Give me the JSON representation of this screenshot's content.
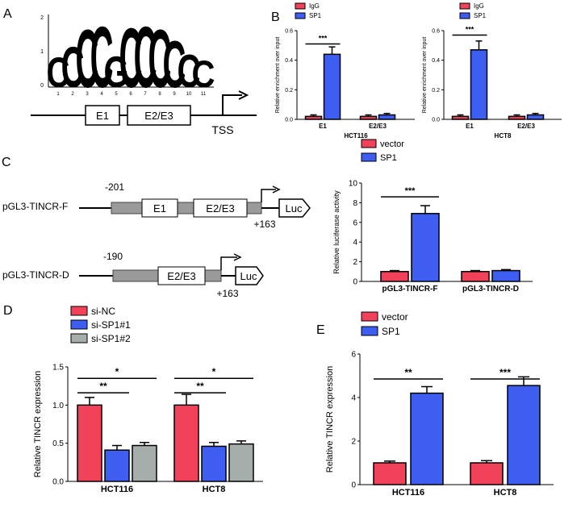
{
  "panel_labels": [
    "A",
    "B",
    "C",
    "D",
    "E"
  ],
  "colors": {
    "red": "#f2425a",
    "blue": "#3d5ef0",
    "grey": "#a6aeab"
  },
  "panel_a": {
    "logo_y_ticks": [
      "2",
      "1",
      "0"
    ],
    "logo_positions": [
      "1",
      "2",
      "3",
      "4",
      "5",
      "6",
      "7",
      "8",
      "9",
      "10",
      "11"
    ],
    "logo_letters": "CCCCGCCCCCC",
    "region_labels": [
      "E1",
      "E2/E3"
    ],
    "tss_label": "TSS"
  },
  "panel_c": {
    "constructs": [
      {
        "name": "pGL3-TINCR-F",
        "start": "-201",
        "end": "+163",
        "regions": [
          "E1",
          "E2/E3"
        ],
        "reporter": "Luc"
      },
      {
        "name": "pGL3-TINCR-D",
        "start": "-190",
        "end": "+163",
        "regions": [
          "E2/E3"
        ],
        "reporter": "Luc"
      }
    ]
  },
  "chart_data": [
    {
      "id": "B1",
      "type": "bar",
      "categories": [
        "E1",
        "E2/E3"
      ],
      "xlabel": "HCT116",
      "ylabel": "Relative enrichment over input",
      "ylim": [
        0,
        0.6
      ],
      "yticks": [
        "0.0",
        "0.2",
        "0.4",
        "0.6"
      ],
      "tick_values": [
        0,
        0.2,
        0.4,
        0.6
      ],
      "series": [
        {
          "name": "IgG",
          "color": "#f2425a",
          "values": [
            0.02,
            0.02
          ],
          "errors": [
            0.01,
            0.01
          ]
        },
        {
          "name": "SP1",
          "color": "#3d5ef0",
          "values": [
            0.44,
            0.03
          ],
          "errors": [
            0.05,
            0.01
          ]
        }
      ],
      "annotations": [
        {
          "label": "***",
          "from": 0,
          "to": 1,
          "at": 0.51
        }
      ],
      "legend": "top-left"
    },
    {
      "id": "B2",
      "type": "bar",
      "categories": [
        "E1",
        "E2/E3"
      ],
      "xlabel": "HCT8",
      "ylabel": "Relative enrichment over input",
      "ylim": [
        0,
        0.6
      ],
      "yticks": [
        "0.0",
        "0.2",
        "0.4",
        "0.6"
      ],
      "tick_values": [
        0,
        0.2,
        0.4,
        0.6
      ],
      "series": [
        {
          "name": "IgG",
          "color": "#f2425a",
          "values": [
            0.02,
            0.02
          ],
          "errors": [
            0.01,
            0.01
          ]
        },
        {
          "name": "SP1",
          "color": "#3d5ef0",
          "values": [
            0.47,
            0.03
          ],
          "errors": [
            0.06,
            0.01
          ]
        }
      ],
      "annotations": [
        {
          "label": "***",
          "from": 0,
          "to": 1,
          "at": 0.57
        }
      ],
      "legend": "top-left"
    },
    {
      "id": "C",
      "type": "bar",
      "categories": [
        "pGL3-TINCR-F",
        "pGL3-TINCR-D"
      ],
      "xlabel": "",
      "ylabel": "Relative luciferase activity",
      "ylim": [
        0,
        10
      ],
      "yticks": [
        "0",
        "2",
        "4",
        "6",
        "8",
        "10"
      ],
      "tick_values": [
        0,
        2,
        4,
        6,
        8,
        10
      ],
      "series": [
        {
          "name": "vector",
          "color": "#f2425a",
          "values": [
            1.0,
            1.0
          ],
          "errors": [
            0.1,
            0.1
          ]
        },
        {
          "name": "SP1",
          "color": "#3d5ef0",
          "values": [
            6.9,
            1.1
          ],
          "errors": [
            0.8,
            0.1
          ]
        }
      ],
      "annotations": [
        {
          "label": "***",
          "from": 0,
          "to": 1,
          "at": 8.6
        }
      ],
      "legend": "top-left"
    },
    {
      "id": "D",
      "type": "bar",
      "categories": [
        "HCT116",
        "HCT8"
      ],
      "xlabel": "",
      "ylabel": "Relative TINCR expression",
      "ylim": [
        0,
        1.5
      ],
      "yticks": [
        "0.0",
        "0.5",
        "1.0",
        "1.5"
      ],
      "tick_values": [
        0,
        0.5,
        1.0,
        1.5
      ],
      "series": [
        {
          "name": "si-NC",
          "color": "#f2425a",
          "values": [
            1.0,
            1.0
          ],
          "errors": [
            0.1,
            0.14
          ]
        },
        {
          "name": "si-SP1#1",
          "color": "#3d5ef0",
          "values": [
            0.41,
            0.46
          ],
          "errors": [
            0.06,
            0.05
          ]
        },
        {
          "name": "si-SP1#2",
          "color": "#a6aeab",
          "values": [
            0.47,
            0.49
          ],
          "errors": [
            0.04,
            0.04
          ]
        }
      ],
      "annotations": [
        {
          "label": "*",
          "from": 0,
          "to": 2,
          "at": 1.35
        },
        {
          "label": "**",
          "from": 0,
          "to": 1,
          "at": 1.16
        },
        {
          "label": "*",
          "from": 3,
          "to": 5,
          "at": 1.35
        },
        {
          "label": "**",
          "from": 3,
          "to": 4,
          "at": 1.16
        }
      ],
      "legend": "top-left"
    },
    {
      "id": "E",
      "type": "bar",
      "categories": [
        "HCT116",
        "HCT8"
      ],
      "xlabel": "",
      "ylabel": "Relative TINCR expression",
      "ylim": [
        0,
        6
      ],
      "yticks": [
        "0",
        "2",
        "4",
        "6"
      ],
      "tick_values": [
        0,
        2,
        4,
        6
      ],
      "series": [
        {
          "name": "vector",
          "color": "#f2425a",
          "values": [
            1.0,
            1.0
          ],
          "errors": [
            0.08,
            0.1
          ]
        },
        {
          "name": "SP1",
          "color": "#3d5ef0",
          "values": [
            4.2,
            4.55
          ],
          "errors": [
            0.3,
            0.4
          ]
        }
      ],
      "annotations": [
        {
          "label": "**",
          "from": 0,
          "to": 1,
          "at": 4.85
        },
        {
          "label": "***",
          "from": 2,
          "to": 3,
          "at": 4.85
        }
      ],
      "legend": "top-left"
    }
  ]
}
